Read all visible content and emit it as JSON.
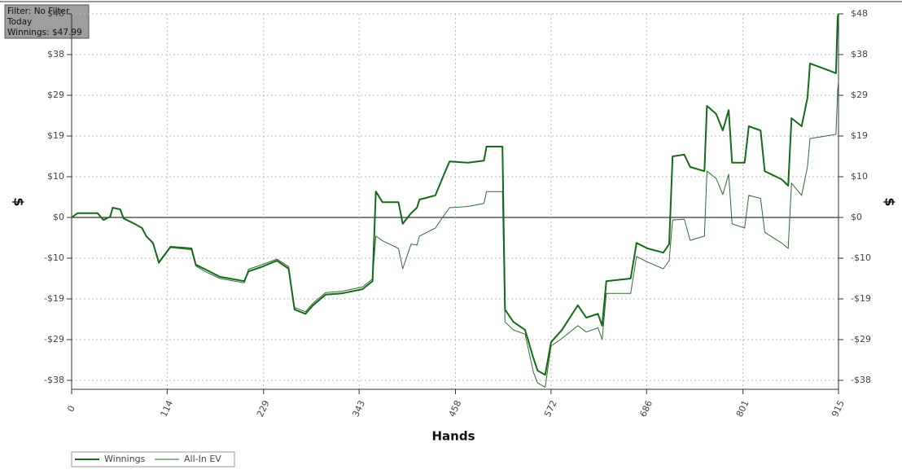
{
  "chart_data": {
    "type": "line",
    "info": [
      "Filter: No Filter",
      "Today",
      "Winnings: $47.99"
    ],
    "xlabel": "Hands",
    "ylabel": "$",
    "x": [
      0,
      7,
      31,
      38,
      46,
      49,
      58,
      62,
      75,
      84,
      89,
      97,
      104,
      118,
      143,
      148,
      158,
      177,
      206,
      211,
      226,
      245,
      259,
      266,
      279,
      288,
      303,
      322,
      347,
      359,
      363,
      371,
      390,
      395,
      405,
      412,
      415,
      434,
      444,
      451,
      473,
      492,
      495,
      514,
      517,
      527,
      541,
      551,
      556,
      565,
      572,
      585,
      604,
      614,
      628,
      633,
      638,
      667,
      674,
      687,
      706,
      713,
      717,
      731,
      738,
      755,
      758,
      769,
      777,
      784,
      788,
      803,
      808,
      822,
      827,
      847,
      855,
      859,
      871,
      878,
      881,
      900,
      912,
      914,
      915
    ],
    "series": [
      {
        "name": "Winnings",
        "color": "#16691a",
        "width": 2,
        "values": [
          0,
          1,
          1,
          -0.6,
          0.2,
          2.3,
          1.9,
          -0.2,
          -1.5,
          -2.5,
          -4.4,
          -6,
          -10.6,
          -6.9,
          -7.3,
          -11.1,
          -12.1,
          -14,
          -15,
          -12.7,
          -11.7,
          -10.2,
          -12.1,
          -21.7,
          -22.7,
          -20.7,
          -18.2,
          -17.9,
          -16.9,
          -15,
          6.1,
          3.6,
          3.6,
          -1.5,
          1,
          2.3,
          4.2,
          5.2,
          10,
          13.2,
          12.9,
          13.4,
          16.7,
          16.7,
          -21.7,
          -24.6,
          -26.5,
          -33.2,
          -36.1,
          -37.1,
          -29.4,
          -26.5,
          -20.7,
          -23.6,
          -22.7,
          -25.5,
          -15,
          -14.4,
          -6,
          -7.3,
          -8.3,
          -6.3,
          14.4,
          14.8,
          11.9,
          10.9,
          26.3,
          24.4,
          20.5,
          25.3,
          12.9,
          12.9,
          21.5,
          20.5,
          10.9,
          9,
          7.5,
          23.4,
          21.5,
          28.2,
          36.3,
          34.9,
          34,
          47.4,
          47.99
        ]
      },
      {
        "name": "All-In EV",
        "color": "#2f6b33",
        "width": 1,
        "values": [
          0,
          1,
          1,
          -0.6,
          0.2,
          2.3,
          1.9,
          -0.2,
          -1.5,
          -2.5,
          -4.4,
          -6.2,
          -10.8,
          -7.1,
          -7.6,
          -11.4,
          -12.6,
          -14.4,
          -15.4,
          -12.2,
          -11.2,
          -9.8,
          -11.6,
          -21.2,
          -22.2,
          -20.2,
          -17.7,
          -17.4,
          -16.4,
          -14.5,
          -4.4,
          -5.5,
          -7.3,
          -12.1,
          -6.3,
          -6.5,
          -4.4,
          -2.5,
          0.4,
          2.3,
          2.6,
          3.3,
          6.1,
          6.1,
          -24.6,
          -26.5,
          -27.5,
          -36.5,
          -39,
          -40,
          -30.3,
          -28.5,
          -25.5,
          -27,
          -26,
          -28.8,
          -17.9,
          -17.9,
          -9.2,
          -10.5,
          -12.1,
          -10.2,
          -0.6,
          -0.4,
          -5.4,
          -4.4,
          10.9,
          9.2,
          5.4,
          10.2,
          -1.5,
          -2.5,
          5.2,
          4.5,
          -3.5,
          -6,
          -7.3,
          8.1,
          5.2,
          12,
          18.6,
          19.2,
          19.6,
          30,
          32
        ]
      }
    ],
    "xlim": [
      0,
      915
    ],
    "xticks": [
      0,
      114,
      229,
      343,
      458,
      572,
      686,
      801,
      915
    ],
    "ylim": [
      -40.5,
      47.99
    ],
    "yticks": [
      {
        "value": -38.39,
        "label": "-$38"
      },
      {
        "value": -28.79,
        "label": "-$29"
      },
      {
        "value": -19.2,
        "label": "-$19"
      },
      {
        "value": -9.6,
        "label": "-$10"
      },
      {
        "value": 0,
        "label": "$0"
      },
      {
        "value": 9.6,
        "label": "$10"
      },
      {
        "value": 19.2,
        "label": "$19"
      },
      {
        "value": 28.79,
        "label": "$29"
      },
      {
        "value": 38.39,
        "label": "$38"
      },
      {
        "value": 47.99,
        "label": "$48"
      }
    ],
    "grid": true
  }
}
